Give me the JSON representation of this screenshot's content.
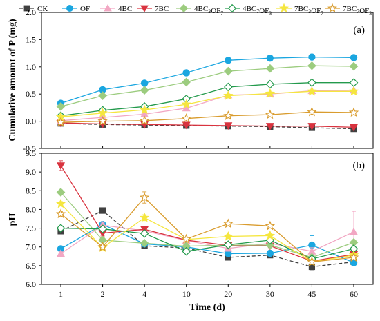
{
  "chart_data": [
    {
      "type": "line",
      "panel_label": "(a)",
      "ylabel": "Cumulative amount of P (mg)",
      "ylim": [
        -0.5,
        2.0
      ],
      "yticks": [
        "2.0",
        "1.5",
        "1.0",
        "0.5",
        "0.0",
        "-0.5"
      ],
      "ytick_values": [
        2.0,
        1.5,
        1.0,
        0.5,
        0.0,
        -0.5
      ],
      "grid": false,
      "legend": {
        "placement": "top",
        "entries": [
          {
            "name": "CK",
            "base": "CK"
          },
          {
            "name": "OF",
            "base": "OF"
          },
          {
            "name": "4BC",
            "base": "4BC"
          },
          {
            "name": "7BC",
            "base": "7BC"
          },
          {
            "name": "4BC3OF7",
            "base": "4BC",
            "sub1": "3",
            "mid": "OF",
            "sub2": "7"
          },
          {
            "name": "4BC7OF3",
            "base": "4BC",
            "sub1": "7",
            "mid": "OF",
            "sub2": "3"
          },
          {
            "name": "7BC3OF7",
            "base": "7BC",
            "sub1": "3",
            "mid": "OF",
            "sub2": "7"
          },
          {
            "name": "7BC7OF3",
            "base": "7BC",
            "sub1": "7",
            "mid": "OF",
            "sub2": "3"
          }
        ]
      },
      "series": [
        {
          "name": "CK",
          "color": "#404040",
          "marker": "square",
          "filled": true,
          "dashed": true,
          "values": [
            -0.04,
            -0.06,
            -0.07,
            -0.08,
            -0.09,
            -0.1,
            -0.12,
            -0.14
          ]
        },
        {
          "name": "OF",
          "color": "#1aa6e0",
          "marker": "circle",
          "filled": true,
          "dashed": false,
          "values": [
            0.33,
            0.58,
            0.7,
            0.89,
            1.12,
            1.16,
            1.18,
            1.17
          ]
        },
        {
          "name": "4BC",
          "color": "#f2a7c3",
          "marker": "triangle-up",
          "filled": true,
          "dashed": false,
          "values": [
            0.01,
            0.07,
            0.13,
            0.24,
            0.48,
            0.5,
            0.56,
            0.57
          ]
        },
        {
          "name": "7BC",
          "color": "#d9333f",
          "marker": "triangle-down",
          "filled": true,
          "dashed": false,
          "values": [
            -0.03,
            -0.05,
            -0.06,
            -0.07,
            -0.08,
            -0.09,
            -0.09,
            -0.11
          ]
        },
        {
          "name": "4BC3OF7",
          "color": "#9ccc7f",
          "marker": "diamond",
          "filled": true,
          "dashed": false,
          "values": [
            0.27,
            0.47,
            0.57,
            0.72,
            0.92,
            0.97,
            1.02,
            1.01
          ]
        },
        {
          "name": "4BC7OF3",
          "color": "#239a4c",
          "marker": "diamond",
          "filled": false,
          "dashed": false,
          "values": [
            0.1,
            0.2,
            0.27,
            0.41,
            0.63,
            0.68,
            0.71,
            0.71
          ]
        },
        {
          "name": "7BC3OF7",
          "color": "#f5e63f",
          "marker": "star",
          "filled": true,
          "dashed": false,
          "values": [
            0.08,
            0.15,
            0.21,
            0.31,
            0.47,
            0.51,
            0.55,
            0.55
          ]
        },
        {
          "name": "7BC7OF3",
          "color": "#d99c2e",
          "marker": "star",
          "filled": false,
          "dashed": false,
          "values": [
            -0.02,
            0.0,
            0.01,
            0.05,
            0.1,
            0.12,
            0.17,
            0.16
          ]
        }
      ]
    },
    {
      "type": "line",
      "panel_label": "(b)",
      "xlabel": "Time (d)",
      "ylabel": "pH",
      "categories": [
        "1",
        "2",
        "4",
        "10",
        "20",
        "30",
        "45",
        "60"
      ],
      "ylim": [
        6.0,
        9.5
      ],
      "yticks": [
        "9.5",
        "9.0",
        "8.5",
        "8.0",
        "7.5",
        "7.0",
        "6.5",
        "6.0"
      ],
      "ytick_values": [
        9.5,
        9.0,
        8.5,
        8.0,
        7.5,
        7.0,
        6.5,
        6.0
      ],
      "grid": false,
      "series": [
        {
          "name": "CK",
          "values": [
            7.42,
            7.97,
            7.03,
            6.97,
            6.72,
            6.78,
            6.47,
            6.6
          ],
          "errors": [
            0.05,
            0.07,
            0.05,
            0.04,
            0.05,
            0.04,
            0.08,
            0.05
          ]
        },
        {
          "name": "OF",
          "values": [
            6.95,
            7.6,
            7.08,
            7.0,
            6.82,
            6.83,
            7.05,
            6.58
          ],
          "errors": [
            0.06,
            0.06,
            0.05,
            0.04,
            0.04,
            0.04,
            0.25,
            0.05
          ]
        },
        {
          "name": "4BC",
          "values": [
            6.82,
            7.58,
            7.43,
            7.17,
            6.96,
            7.1,
            6.88,
            7.4
          ],
          "errors": [
            0.05,
            0.06,
            0.07,
            0.05,
            0.05,
            0.05,
            0.1,
            0.55
          ]
        },
        {
          "name": "7BC",
          "values": [
            9.17,
            7.37,
            7.47,
            7.18,
            7.04,
            7.03,
            6.62,
            6.8
          ],
          "errors": [
            0.13,
            0.08,
            0.06,
            0.05,
            0.05,
            0.05,
            0.07,
            0.06
          ]
        },
        {
          "name": "4BC3OF7",
          "values": [
            8.46,
            7.18,
            7.1,
            7.02,
            7.05,
            7.05,
            6.72,
            7.12
          ],
          "errors": [
            0.06,
            0.06,
            0.05,
            0.05,
            0.05,
            0.05,
            0.06,
            0.06
          ]
        },
        {
          "name": "4BC7OF3",
          "values": [
            7.5,
            7.48,
            7.36,
            6.88,
            7.06,
            7.18,
            6.68,
            6.95
          ],
          "errors": [
            0.06,
            0.06,
            0.06,
            0.05,
            0.05,
            0.05,
            0.06,
            0.05
          ]
        },
        {
          "name": "7BC3OF7",
          "values": [
            8.15,
            6.98,
            7.78,
            7.2,
            7.28,
            7.3,
            6.6,
            6.78
          ],
          "errors": [
            0.06,
            0.06,
            0.08,
            0.05,
            0.05,
            0.05,
            0.06,
            0.06
          ]
        },
        {
          "name": "7BC7OF3",
          "values": [
            7.88,
            7.0,
            8.32,
            7.21,
            7.62,
            7.56,
            6.6,
            6.72
          ],
          "errors": [
            0.06,
            0.06,
            0.15,
            0.05,
            0.05,
            0.05,
            0.06,
            0.06
          ]
        }
      ]
    }
  ]
}
